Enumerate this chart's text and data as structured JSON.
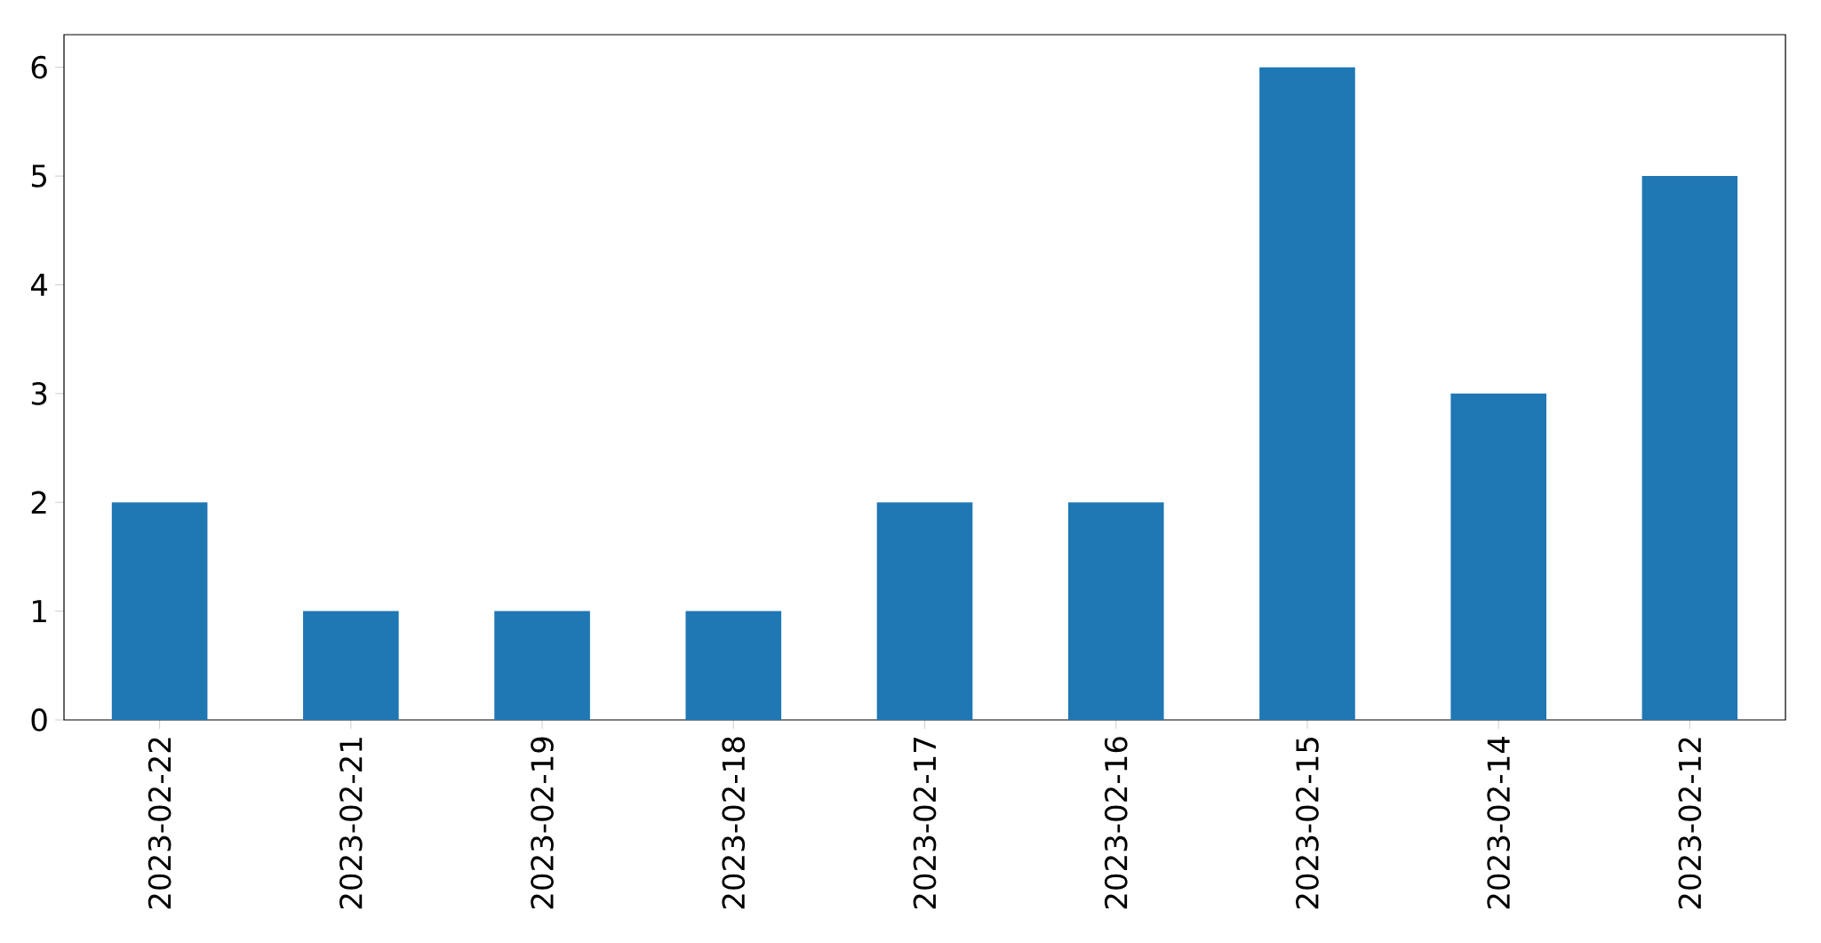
{
  "chart_data": {
    "type": "bar",
    "categories": [
      "2023-02-22",
      "2023-02-21",
      "2023-02-19",
      "2023-02-18",
      "2023-02-17",
      "2023-02-16",
      "2023-02-15",
      "2023-02-14",
      "2023-02-12"
    ],
    "values": [
      2,
      1,
      1,
      1,
      2,
      2,
      6,
      3,
      5
    ],
    "color": "#1f77b4",
    "ylim": [
      0,
      6.3
    ],
    "yticks": [
      0,
      1,
      2,
      3,
      4,
      5,
      6
    ]
  }
}
